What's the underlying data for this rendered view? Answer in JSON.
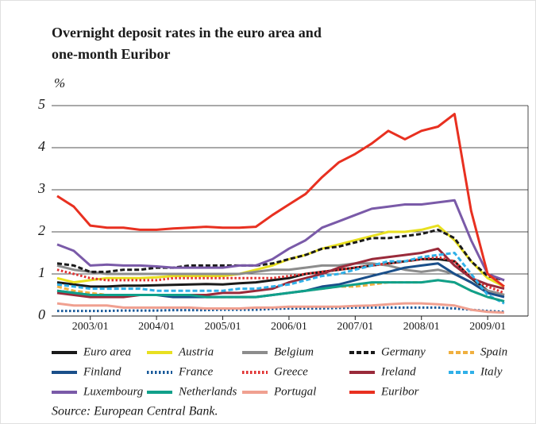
{
  "chart_data": {
    "type": "line",
    "title": "Overnight deposit rates in the euro area and",
    "subtitle": "one-month Euribor",
    "y_label": "%",
    "source": "Source: European Central Bank.",
    "categories": [
      null,
      null,
      "2003/01",
      null,
      null,
      null,
      "2004/01",
      null,
      null,
      null,
      "2005/01",
      null,
      null,
      null,
      "2006/01",
      null,
      null,
      null,
      "2007/01",
      null,
      null,
      null,
      "2008/01",
      null,
      null,
      null,
      "2009/01",
      null
    ],
    "ylim": [
      0,
      5
    ],
    "yticks": [
      0,
      1,
      2,
      3,
      4,
      5
    ],
    "grid": true,
    "series": [
      {
        "name": "Euro area",
        "color": "#1a1a1a",
        "dash": "solid",
        "values": [
          0.8,
          0.75,
          0.7,
          0.7,
          0.72,
          0.72,
          0.73,
          0.74,
          0.75,
          0.76,
          0.75,
          0.78,
          0.8,
          0.85,
          0.9,
          1.0,
          1.05,
          1.1,
          1.15,
          1.2,
          1.25,
          1.3,
          1.35,
          1.35,
          1.3,
          0.9,
          0.6,
          0.5
        ]
      },
      {
        "name": "Austria",
        "color": "#e8e020",
        "dash": "solid",
        "values": [
          0.9,
          0.8,
          0.85,
          0.9,
          0.9,
          0.9,
          0.92,
          0.95,
          0.95,
          0.95,
          0.95,
          1.0,
          1.1,
          1.2,
          1.35,
          1.45,
          1.6,
          1.7,
          1.8,
          1.9,
          2.0,
          2.0,
          2.05,
          2.15,
          1.8,
          1.3,
          0.9,
          0.7
        ]
      },
      {
        "name": "Belgium",
        "color": "#8c8c8c",
        "dash": "solid",
        "values": [
          1.2,
          1.1,
          1.05,
          1.0,
          1.0,
          1.0,
          1.0,
          1.0,
          1.0,
          1.0,
          1.0,
          1.0,
          1.05,
          1.1,
          1.1,
          1.15,
          1.2,
          1.2,
          1.25,
          1.25,
          1.2,
          1.1,
          1.05,
          1.1,
          1.0,
          0.8,
          0.6,
          0.5
        ]
      },
      {
        "name": "Germany",
        "color": "#1a1a1a",
        "dash": "dashed",
        "values": [
          1.25,
          1.2,
          1.05,
          1.05,
          1.1,
          1.1,
          1.15,
          1.15,
          1.2,
          1.2,
          1.2,
          1.2,
          1.2,
          1.25,
          1.35,
          1.45,
          1.6,
          1.65,
          1.75,
          1.85,
          1.85,
          1.9,
          1.95,
          2.05,
          1.85,
          1.3,
          0.95,
          0.85
        ]
      },
      {
        "name": "Spain",
        "color": "#f0b040",
        "dash": "dashed",
        "values": [
          0.7,
          0.6,
          0.55,
          0.5,
          0.5,
          0.5,
          0.5,
          0.5,
          0.5,
          0.45,
          0.45,
          0.45,
          0.45,
          0.5,
          0.55,
          0.6,
          0.65,
          0.7,
          0.7,
          0.75,
          0.8,
          0.8,
          0.8,
          0.85,
          0.8,
          0.6,
          0.45,
          0.35
        ]
      },
      {
        "name": "Finland",
        "color": "#1a4f8a",
        "dash": "solid",
        "values": [
          0.6,
          0.55,
          0.5,
          0.5,
          0.5,
          0.5,
          0.5,
          0.45,
          0.45,
          0.45,
          0.45,
          0.45,
          0.45,
          0.5,
          0.55,
          0.6,
          0.7,
          0.75,
          0.85,
          0.95,
          1.05,
          1.15,
          1.2,
          1.25,
          1.0,
          0.8,
          0.55,
          0.45
        ]
      },
      {
        "name": "France",
        "color": "#1a5a9a",
        "dash": "dotted",
        "values": [
          0.12,
          0.12,
          0.12,
          0.12,
          0.13,
          0.13,
          0.13,
          0.14,
          0.14,
          0.14,
          0.15,
          0.15,
          0.15,
          0.17,
          0.18,
          0.18,
          0.18,
          0.19,
          0.2,
          0.2,
          0.2,
          0.2,
          0.2,
          0.2,
          0.18,
          0.15,
          0.12,
          0.1
        ]
      },
      {
        "name": "Greece",
        "color": "#e03030",
        "dash": "dotted",
        "values": [
          1.1,
          1.0,
          0.9,
          0.85,
          0.85,
          0.85,
          0.85,
          0.9,
          0.9,
          0.9,
          0.9,
          0.9,
          0.9,
          0.9,
          0.95,
          1.0,
          1.05,
          1.1,
          1.15,
          1.2,
          1.25,
          1.3,
          1.35,
          1.4,
          1.3,
          0.9,
          0.7,
          0.55
        ]
      },
      {
        "name": "Ireland",
        "color": "#9a2a3a",
        "dash": "solid",
        "values": [
          0.55,
          0.5,
          0.45,
          0.45,
          0.45,
          0.5,
          0.5,
          0.5,
          0.5,
          0.5,
          0.55,
          0.55,
          0.6,
          0.65,
          0.8,
          0.9,
          1.0,
          1.15,
          1.25,
          1.35,
          1.4,
          1.45,
          1.5,
          1.6,
          1.2,
          0.9,
          0.75,
          0.65
        ]
      },
      {
        "name": "Italy",
        "color": "#30b0e8",
        "dash": "dashed",
        "values": [
          0.75,
          0.7,
          0.65,
          0.65,
          0.65,
          0.65,
          0.6,
          0.6,
          0.6,
          0.6,
          0.6,
          0.65,
          0.65,
          0.7,
          0.75,
          0.85,
          0.95,
          1.0,
          1.1,
          1.2,
          1.3,
          1.3,
          1.4,
          1.45,
          1.5,
          1.0,
          0.5,
          0.3
        ]
      },
      {
        "name": "Luxembourg",
        "color": "#7a5aa8",
        "dash": "solid",
        "values": [
          1.7,
          1.55,
          1.2,
          1.22,
          1.2,
          1.2,
          1.18,
          1.15,
          1.15,
          1.15,
          1.15,
          1.2,
          1.2,
          1.35,
          1.6,
          1.8,
          2.1,
          2.25,
          2.4,
          2.55,
          2.6,
          2.65,
          2.65,
          2.7,
          2.75,
          1.8,
          1.0,
          0.85
        ]
      },
      {
        "name": "Netherlands",
        "color": "#10a08a",
        "dash": "solid",
        "values": [
          0.6,
          0.55,
          0.5,
          0.5,
          0.5,
          0.5,
          0.5,
          0.5,
          0.5,
          0.45,
          0.45,
          0.45,
          0.45,
          0.5,
          0.55,
          0.6,
          0.65,
          0.7,
          0.75,
          0.8,
          0.8,
          0.8,
          0.8,
          0.85,
          0.8,
          0.6,
          0.45,
          0.35
        ]
      },
      {
        "name": "Portugal",
        "color": "#f0a090",
        "dash": "solid",
        "values": [
          0.3,
          0.25,
          0.25,
          0.25,
          0.2,
          0.2,
          0.2,
          0.2,
          0.2,
          0.18,
          0.18,
          0.18,
          0.2,
          0.2,
          0.22,
          0.22,
          0.22,
          0.22,
          0.24,
          0.25,
          0.28,
          0.3,
          0.3,
          0.28,
          0.25,
          0.15,
          0.1,
          0.08
        ]
      },
      {
        "name": "Euribor",
        "color": "#e83020",
        "dash": "solid",
        "values": [
          2.85,
          2.6,
          2.15,
          2.1,
          2.1,
          2.05,
          2.05,
          2.08,
          2.1,
          2.12,
          2.1,
          2.1,
          2.12,
          2.4,
          2.65,
          2.9,
          3.3,
          3.65,
          3.85,
          4.1,
          4.4,
          4.2,
          4.4,
          4.5,
          4.8,
          2.5,
          1.0,
          0.7
        ]
      }
    ]
  }
}
